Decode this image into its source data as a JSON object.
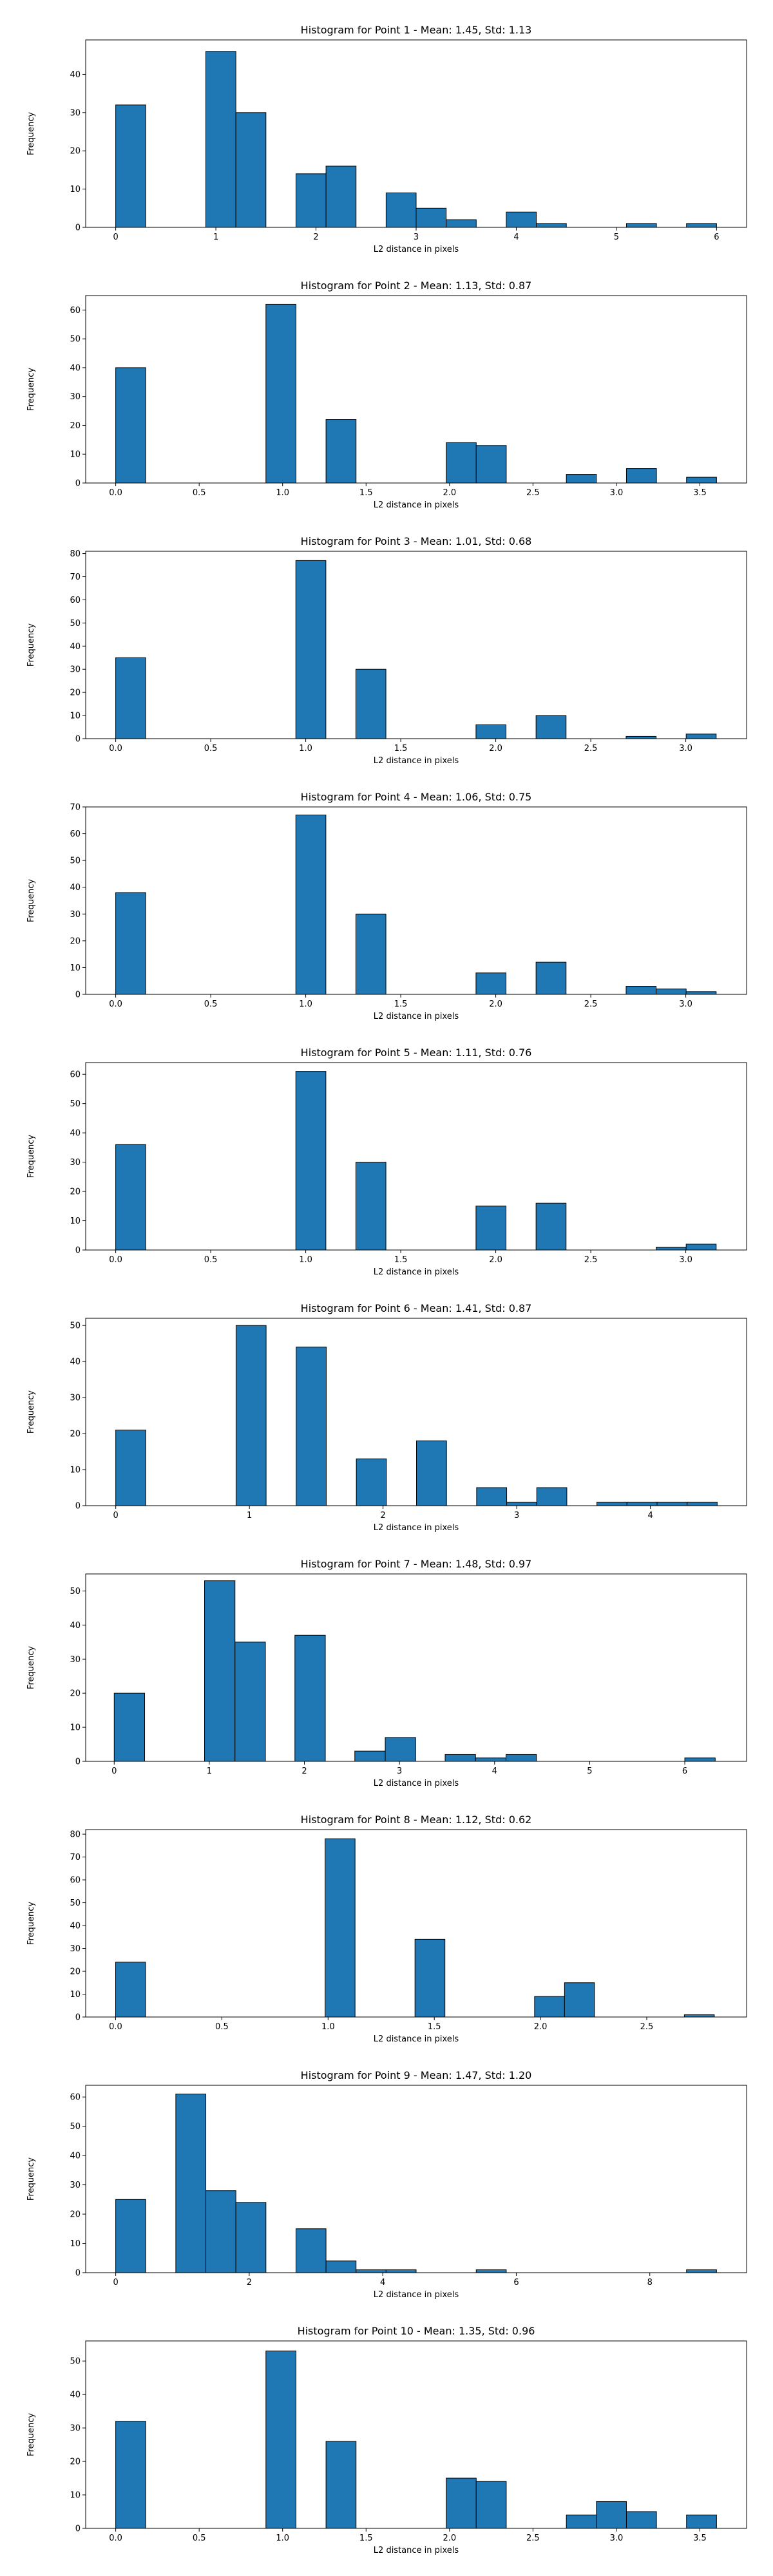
{
  "chart_data": [
    {
      "type": "histogram",
      "title": "Histogram for Point 1 - Mean: 1.45, Std: 1.13",
      "xlabel": "L2 distance in pixels",
      "ylabel": "Frequency",
      "xlim": [
        -0.3,
        6.3
      ],
      "ylim": [
        0,
        49
      ],
      "xticks": [
        0,
        1,
        2,
        3,
        4,
        5,
        6
      ],
      "xtick_labels": [
        "0",
        "1",
        "2",
        "3",
        "4",
        "5",
        "6"
      ],
      "yticks": [
        0,
        10,
        20,
        30,
        40
      ],
      "yticks_labels": [
        "0",
        "10",
        "20",
        "30",
        "40"
      ],
      "bins": [
        [
          0,
          0.3,
          32
        ],
        [
          0.9,
          1.2,
          46
        ],
        [
          1.2,
          1.5,
          30
        ],
        [
          1.8,
          2.1,
          14
        ],
        [
          2.1,
          2.4,
          16
        ],
        [
          2.7,
          3.0,
          9
        ],
        [
          3.0,
          3.3,
          5
        ],
        [
          3.3,
          3.6,
          2
        ],
        [
          3.9,
          4.2,
          4
        ],
        [
          4.2,
          4.5,
          1
        ],
        [
          5.1,
          5.4,
          1
        ],
        [
          5.7,
          6.0,
          1
        ]
      ]
    },
    {
      "type": "histogram",
      "title": "Histogram for Point 2 - Mean: 1.13, Std: 0.87",
      "xlabel": "L2 distance in pixels",
      "ylabel": "Frequency",
      "xlim": [
        -0.18,
        3.78
      ],
      "ylim": [
        0,
        65
      ],
      "xticks": [
        0,
        0.5,
        1,
        1.5,
        2,
        2.5,
        3,
        3.5
      ],
      "xtick_labels": [
        "0.0",
        "0.5",
        "1.0",
        "1.5",
        "2.0",
        "2.5",
        "3.0",
        "3.5"
      ],
      "yticks": [
        0,
        10,
        20,
        30,
        40,
        50,
        60
      ],
      "yticks_labels": [
        "0",
        "10",
        "20",
        "30",
        "40",
        "50",
        "60"
      ],
      "bins": [
        [
          0,
          0.18,
          40
        ],
        [
          0.9,
          1.08,
          62
        ],
        [
          1.26,
          1.44,
          22
        ],
        [
          1.98,
          2.16,
          14
        ],
        [
          2.16,
          2.34,
          13
        ],
        [
          2.7,
          2.88,
          3
        ],
        [
          3.06,
          3.24,
          5
        ],
        [
          3.42,
          3.6,
          2
        ]
      ]
    },
    {
      "type": "histogram",
      "title": "Histogram for Point 3 - Mean: 1.01, Std: 0.68",
      "xlabel": "L2 distance in pixels",
      "ylabel": "Frequency",
      "xlim": [
        -0.158,
        3.32
      ],
      "ylim": [
        0,
        81
      ],
      "xticks": [
        0,
        0.5,
        1,
        1.5,
        2,
        2.5,
        3
      ],
      "xtick_labels": [
        "0.0",
        "0.5",
        "1.0",
        "1.5",
        "2.0",
        "2.5",
        "3.0"
      ],
      "yticks": [
        0,
        10,
        20,
        30,
        40,
        50,
        60,
        70,
        80
      ],
      "yticks_labels": [
        "0",
        "10",
        "20",
        "30",
        "40",
        "50",
        "60",
        "70",
        "80"
      ],
      "bins": [
        [
          0,
          0.158,
          35
        ],
        [
          0.948,
          1.106,
          77
        ],
        [
          1.264,
          1.422,
          30
        ],
        [
          1.896,
          2.054,
          6
        ],
        [
          2.212,
          2.37,
          10
        ],
        [
          2.686,
          2.844,
          1
        ],
        [
          3.002,
          3.16,
          2
        ]
      ]
    },
    {
      "type": "histogram",
      "title": "Histogram for Point 4 - Mean: 1.06, Std: 0.75",
      "xlabel": "L2 distance in pixels",
      "ylabel": "Frequency",
      "xlim": [
        -0.158,
        3.32
      ],
      "ylim": [
        0,
        70
      ],
      "xticks": [
        0,
        0.5,
        1,
        1.5,
        2,
        2.5,
        3
      ],
      "xtick_labels": [
        "0.0",
        "0.5",
        "1.0",
        "1.5",
        "2.0",
        "2.5",
        "3.0"
      ],
      "yticks": [
        0,
        10,
        20,
        30,
        40,
        50,
        60,
        70
      ],
      "yticks_labels": [
        "0",
        "10",
        "20",
        "30",
        "40",
        "50",
        "60",
        "70"
      ],
      "bins": [
        [
          0,
          0.158,
          38
        ],
        [
          0.948,
          1.106,
          67
        ],
        [
          1.264,
          1.422,
          30
        ],
        [
          1.896,
          2.054,
          8
        ],
        [
          2.212,
          2.37,
          12
        ],
        [
          2.686,
          2.844,
          3
        ],
        [
          2.844,
          3.002,
          2
        ],
        [
          3.002,
          3.16,
          1
        ]
      ]
    },
    {
      "type": "histogram",
      "title": "Histogram for Point 5 - Mean: 1.11, Std: 0.76",
      "xlabel": "L2 distance in pixels",
      "ylabel": "Frequency",
      "xlim": [
        -0.158,
        3.32
      ],
      "ylim": [
        0,
        64
      ],
      "xticks": [
        0,
        0.5,
        1,
        1.5,
        2,
        2.5,
        3
      ],
      "xtick_labels": [
        "0.0",
        "0.5",
        "1.0",
        "1.5",
        "2.0",
        "2.5",
        "3.0"
      ],
      "yticks": [
        0,
        10,
        20,
        30,
        40,
        50,
        60
      ],
      "yticks_labels": [
        "0",
        "10",
        "20",
        "30",
        "40",
        "50",
        "60"
      ],
      "bins": [
        [
          0,
          0.158,
          36
        ],
        [
          0.948,
          1.106,
          61
        ],
        [
          1.264,
          1.422,
          30
        ],
        [
          1.896,
          2.054,
          15
        ],
        [
          2.212,
          2.37,
          16
        ],
        [
          2.844,
          3.002,
          1
        ],
        [
          3.002,
          3.16,
          2
        ]
      ]
    },
    {
      "type": "histogram",
      "title": "Histogram for Point 6 - Mean: 1.41, Std: 0.87",
      "xlabel": "L2 distance in pixels",
      "ylabel": "Frequency",
      "xlim": [
        -0.225,
        4.72
      ],
      "ylim": [
        0,
        52
      ],
      "xticks": [
        0,
        1,
        2,
        3,
        4
      ],
      "xtick_labels": [
        "0",
        "1",
        "2",
        "3",
        "4"
      ],
      "yticks": [
        0,
        10,
        20,
        30,
        40,
        50
      ],
      "yticks_labels": [
        "0",
        "10",
        "20",
        "30",
        "40",
        "50"
      ],
      "bins": [
        [
          0,
          0.225,
          21
        ],
        [
          0.9,
          1.125,
          50
        ],
        [
          1.35,
          1.575,
          44
        ],
        [
          1.8,
          2.025,
          13
        ],
        [
          2.25,
          2.475,
          18
        ],
        [
          2.7,
          2.925,
          5
        ],
        [
          2.925,
          3.15,
          1
        ],
        [
          3.15,
          3.375,
          5
        ],
        [
          3.6,
          3.825,
          1
        ],
        [
          3.825,
          4.05,
          1
        ],
        [
          4.05,
          4.275,
          1
        ],
        [
          4.275,
          4.5,
          1
        ]
      ]
    },
    {
      "type": "histogram",
      "title": "Histogram for Point 7 - Mean: 1.48, Std: 0.97",
      "xlabel": "L2 distance in pixels",
      "ylabel": "Frequency",
      "xlim": [
        -0.3,
        6.65
      ],
      "ylim": [
        0,
        55
      ],
      "xticks": [
        0,
        1,
        2,
        3,
        4,
        5,
        6
      ],
      "xtick_labels": [
        "0",
        "1",
        "2",
        "3",
        "4",
        "5",
        "6"
      ],
      "yticks": [
        0,
        10,
        20,
        30,
        40,
        50
      ],
      "yticks_labels": [
        "0",
        "10",
        "20",
        "30",
        "40",
        "50"
      ],
      "bins": [
        [
          0,
          0.32,
          20
        ],
        [
          0.95,
          1.27,
          53
        ],
        [
          1.27,
          1.59,
          35
        ],
        [
          1.9,
          2.22,
          37
        ],
        [
          2.53,
          2.85,
          3
        ],
        [
          2.85,
          3.17,
          7
        ],
        [
          3.48,
          3.8,
          2
        ],
        [
          3.8,
          4.12,
          1
        ],
        [
          4.12,
          4.44,
          2
        ],
        [
          6.0,
          6.32,
          1
        ]
      ]
    },
    {
      "type": "histogram",
      "title": "Histogram for Point 8 - Mean: 1.12, Std: 0.62",
      "xlabel": "L2 distance in pixels",
      "ylabel": "Frequency",
      "xlim": [
        -0.141,
        2.97
      ],
      "ylim": [
        0,
        82
      ],
      "xticks": [
        0,
        0.5,
        1,
        1.5,
        2,
        2.5
      ],
      "xtick_labels": [
        "0.0",
        "0.5",
        "1.0",
        "1.5",
        "2.0",
        "2.5"
      ],
      "yticks": [
        0,
        10,
        20,
        30,
        40,
        50,
        60,
        70,
        80
      ],
      "yticks_labels": [
        "0",
        "10",
        "20",
        "30",
        "40",
        "50",
        "60",
        "70",
        "80"
      ],
      "bins": [
        [
          0,
          0.141,
          24
        ],
        [
          0.986,
          1.127,
          78
        ],
        [
          1.409,
          1.55,
          34
        ],
        [
          1.972,
          2.113,
          9
        ],
        [
          2.113,
          2.254,
          15
        ],
        [
          2.677,
          2.818,
          1
        ]
      ]
    },
    {
      "type": "histogram",
      "title": "Histogram for Point 9 - Mean: 1.47, Std: 1.20",
      "xlabel": "L2 distance in pixels",
      "ylabel": "Frequency",
      "xlim": [
        -0.45,
        9.45
      ],
      "ylim": [
        0,
        64
      ],
      "xticks": [
        0,
        2,
        4,
        6,
        8
      ],
      "xtick_labels": [
        "0",
        "2",
        "4",
        "6",
        "8"
      ],
      "yticks": [
        0,
        10,
        20,
        30,
        40,
        50,
        60
      ],
      "yticks_labels": [
        "0",
        "10",
        "20",
        "30",
        "40",
        "50",
        "60"
      ],
      "bins": [
        [
          0,
          0.45,
          25
        ],
        [
          0.9,
          1.35,
          61
        ],
        [
          1.35,
          1.8,
          28
        ],
        [
          1.8,
          2.25,
          24
        ],
        [
          2.7,
          3.15,
          15
        ],
        [
          3.15,
          3.6,
          4
        ],
        [
          3.6,
          4.05,
          1
        ],
        [
          4.05,
          4.5,
          1
        ],
        [
          5.4,
          5.85,
          1
        ],
        [
          8.55,
          9.0,
          1
        ]
      ]
    },
    {
      "type": "histogram",
      "title": "Histogram for Point 10 - Mean: 1.35, Std: 0.96",
      "xlabel": "L2 distance in pixels",
      "ylabel": "Frequency",
      "xlim": [
        -0.18,
        3.78
      ],
      "ylim": [
        0,
        56
      ],
      "xticks": [
        0,
        0.5,
        1,
        1.5,
        2,
        2.5,
        3,
        3.5
      ],
      "xtick_labels": [
        "0.0",
        "0.5",
        "1.0",
        "1.5",
        "2.0",
        "2.5",
        "3.0",
        "3.5"
      ],
      "yticks": [
        0,
        10,
        20,
        30,
        40,
        50
      ],
      "yticks_labels": [
        "0",
        "10",
        "20",
        "30",
        "40",
        "50"
      ],
      "bins": [
        [
          0,
          0.18,
          32
        ],
        [
          0.9,
          1.08,
          53
        ],
        [
          1.26,
          1.44,
          26
        ],
        [
          1.98,
          2.16,
          15
        ],
        [
          2.16,
          2.34,
          14
        ],
        [
          2.7,
          2.88,
          4
        ],
        [
          2.88,
          3.06,
          8
        ],
        [
          3.06,
          3.24,
          5
        ],
        [
          3.42,
          3.6,
          4
        ]
      ]
    }
  ],
  "colors": {
    "bar": "#1f77b4",
    "edge": "#000000"
  }
}
